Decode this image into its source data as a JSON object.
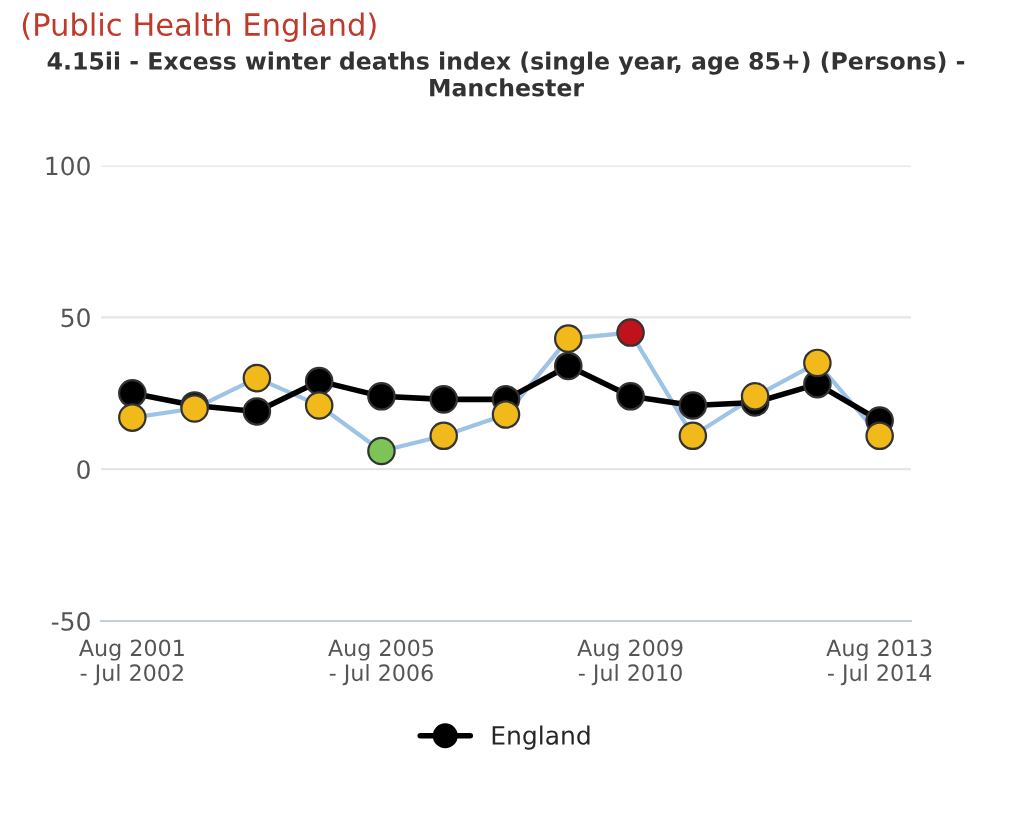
{
  "chart_data": {
    "type": "line",
    "title": "4.15ii - Excess winter deaths index (single year, age 85+) (Persons) -\nManchester",
    "annotations": [
      "(Public Health England)"
    ],
    "categories": [
      "Aug 2001\n- Jul 2002",
      null,
      null,
      null,
      "Aug 2005\n- Jul 2006",
      null,
      null,
      null,
      "Aug 2009\n- Jul 2010",
      null,
      null,
      null,
      "Aug 2013\n- Jul 2014"
    ],
    "series": [
      {
        "color": "#9dc3e6",
        "colors": [
          "#f2b91a",
          "#f2b91a",
          "#f2b91a",
          "#f2b91a",
          "#7cc456",
          "#f2b91a",
          "#f2b91a",
          "#f2b91a",
          "#c0121a",
          "#f2b91a",
          "#f2b91a",
          "#f2b91a",
          "#f2b91a"
        ],
        "values": [
          17,
          20,
          30,
          21,
          6,
          11,
          18,
          43,
          45,
          11,
          24,
          35,
          11
        ]
      },
      {
        "name": "England",
        "color": "#000000",
        "values": [
          25,
          21,
          19,
          29,
          24,
          23,
          23,
          34,
          24,
          21,
          22,
          28,
          16
        ]
      }
    ],
    "ylim": [
      -50,
      100
    ],
    "yticks": [
      -50,
      0,
      50,
      100
    ],
    "grid": "y",
    "legend": "bottom",
    "marker": "circle",
    "line_style": "solid"
  }
}
